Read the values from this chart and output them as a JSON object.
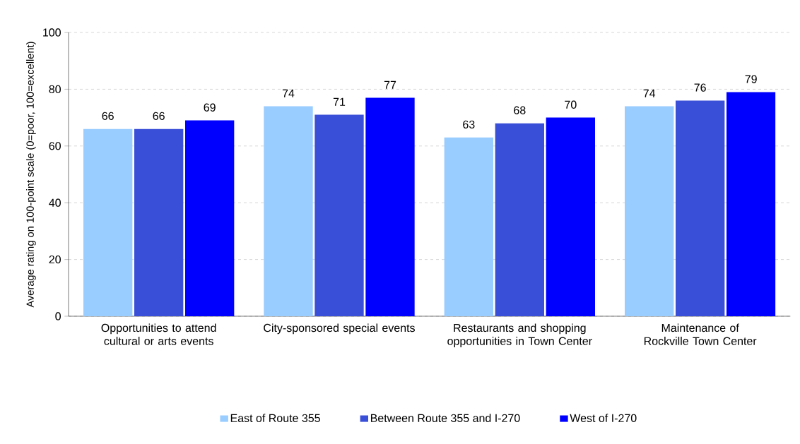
{
  "chart_data": {
    "type": "bar",
    "ylabel": "Average rating on 100-point scale (0=poor, 100=excellent)",
    "categories": [
      "Opportunities to attend cultural or arts events",
      "City-sponsored special events",
      "Restaurants and shopping opportunities in Town Center",
      "Maintenance of Rockville Town Center"
    ],
    "series": [
      {
        "name": "East of Route 355",
        "color": "#99ccff",
        "values": [
          66,
          74,
          63,
          74
        ]
      },
      {
        "name": "Between Route 355 and I-270",
        "color": "#3a4fd8",
        "values": [
          66,
          71,
          68,
          76
        ]
      },
      {
        "name": "West of I-270",
        "color": "#0000ff",
        "values": [
          69,
          77,
          70,
          79
        ]
      }
    ],
    "ylim": [
      0,
      100
    ],
    "yticks": [
      0,
      20,
      40,
      60,
      80,
      100
    ],
    "grid": "y",
    "legend": "bottom",
    "data_labels": true
  }
}
